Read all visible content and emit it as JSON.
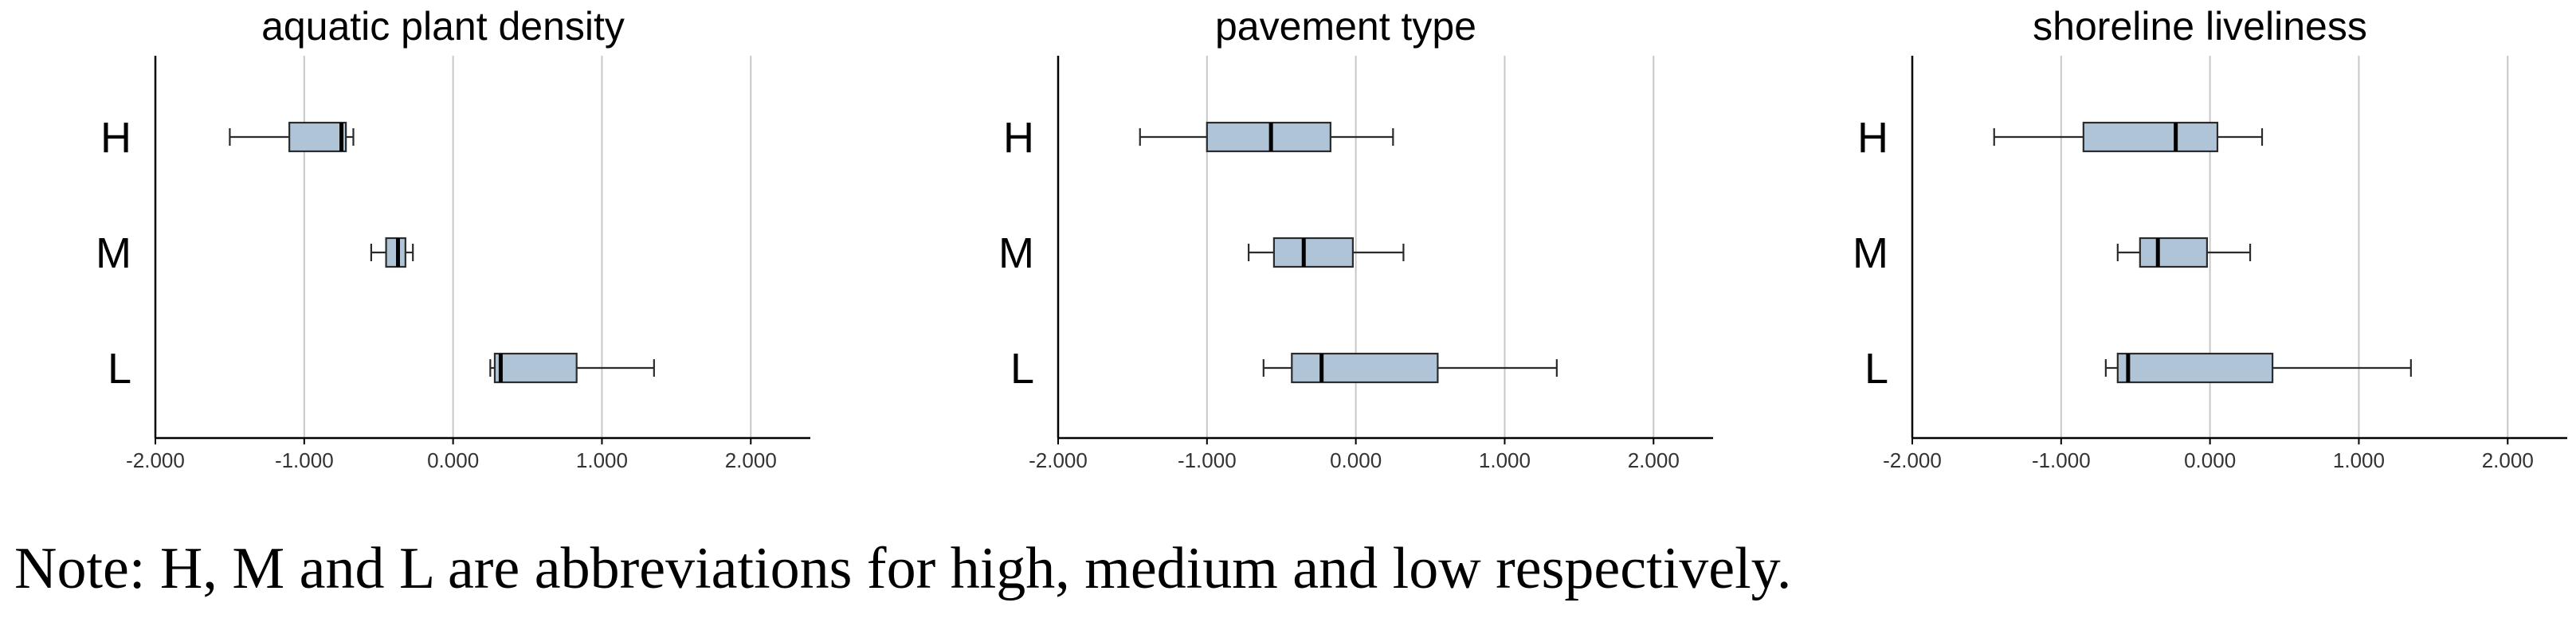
{
  "chart_data": [
    {
      "type": "boxplot",
      "title": "aquatic plant density",
      "xlim": [
        -2.0,
        2.4
      ],
      "xticks": [
        -2.0,
        -1.0,
        0.0,
        1.0,
        2.0
      ],
      "xtick_labels": [
        "-2.000",
        "-1.000",
        "0.000",
        "1.000",
        "2.000"
      ],
      "grid": "vertical lines at -1, 0, 1, 2",
      "categories": [
        "H",
        "M",
        "L"
      ],
      "boxes": [
        {
          "category": "H",
          "whisker_low": -1.5,
          "q1": -1.1,
          "median": -0.75,
          "q3": -0.72,
          "whisker_high": -0.67
        },
        {
          "category": "M",
          "whisker_low": -0.55,
          "q1": -0.45,
          "median": -0.37,
          "q3": -0.32,
          "whisker_high": -0.27
        },
        {
          "category": "L",
          "whisker_low": 0.25,
          "q1": 0.28,
          "median": 0.32,
          "q3": 0.83,
          "whisker_high": 1.35
        }
      ]
    },
    {
      "type": "boxplot",
      "title": "pavement type",
      "xlim": [
        -2.0,
        2.4
      ],
      "xticks": [
        -2.0,
        -1.0,
        0.0,
        1.0,
        2.0
      ],
      "xtick_labels": [
        "-2.000",
        "-1.000",
        "0.000",
        "1.000",
        "2.000"
      ],
      "grid": "vertical lines at -1, 0, 1, 2",
      "categories": [
        "H",
        "M",
        "L"
      ],
      "boxes": [
        {
          "category": "H",
          "whisker_low": -1.45,
          "q1": -1.0,
          "median": -0.57,
          "q3": -0.17,
          "whisker_high": 0.25
        },
        {
          "category": "M",
          "whisker_low": -0.72,
          "q1": -0.55,
          "median": -0.35,
          "q3": -0.02,
          "whisker_high": 0.32
        },
        {
          "category": "L",
          "whisker_low": -0.62,
          "q1": -0.43,
          "median": -0.23,
          "q3": 0.55,
          "whisker_high": 1.35
        }
      ]
    },
    {
      "type": "boxplot",
      "title": "shoreline liveliness",
      "xlim": [
        -2.0,
        2.4
      ],
      "xticks": [
        -2.0,
        -1.0,
        0.0,
        1.0,
        2.0
      ],
      "xtick_labels": [
        "-2.000",
        "-1.000",
        "0.000",
        "1.000",
        "2.000"
      ],
      "grid": "vertical lines at -1, 0, 1, 2",
      "categories": [
        "H",
        "M",
        "L"
      ],
      "boxes": [
        {
          "category": "H",
          "whisker_low": -1.45,
          "q1": -0.85,
          "median": -0.23,
          "q3": 0.05,
          "whisker_high": 0.35
        },
        {
          "category": "M",
          "whisker_low": -0.62,
          "q1": -0.47,
          "median": -0.35,
          "q3": -0.02,
          "whisker_high": 0.27
        },
        {
          "category": "L",
          "whisker_low": -0.7,
          "q1": -0.62,
          "median": -0.55,
          "q3": 0.42,
          "whisker_high": 1.35
        }
      ]
    }
  ],
  "colors": {
    "box_fill": "#b0c4d8",
    "box_stroke": "#2b2b2b",
    "median": "#000000",
    "grid": "#c8c8c8",
    "axis": "#000000"
  },
  "note": "Note: H, M and L are abbreviations for high, medium and low respectively."
}
